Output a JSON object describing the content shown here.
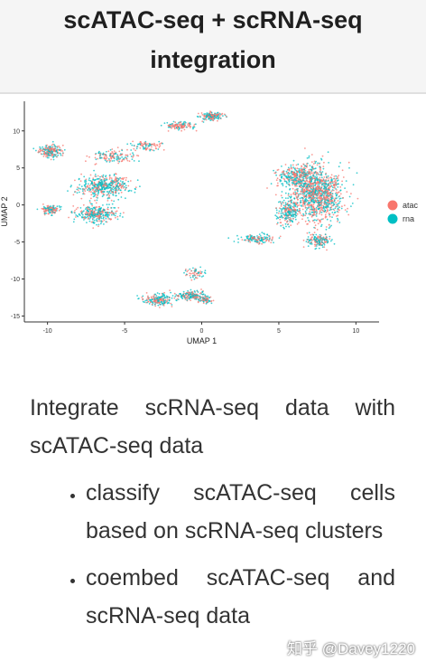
{
  "slide": {
    "title_line1": "scATAC-seq + scRNA-seq",
    "title_line2": "integration",
    "intro": "Integrate scRNA-seq data with scATAC-seq data",
    "bullets": [
      "classify scATAC-seq cells based on scRNA-seq clusters",
      "coembed scATAC-seq and scRNA-seq data"
    ],
    "watermark": "知乎 @Davey1220"
  },
  "chart_data": {
    "type": "scatter",
    "xlabel": "UMAP 1",
    "ylabel": "UMAP 2",
    "xlim": [
      -11.5,
      11.5
    ],
    "ylim": [
      -15.8,
      14
    ],
    "xticks": [
      -10,
      -5,
      0,
      5,
      10
    ],
    "yticks": [
      10,
      5,
      0,
      -5,
      -10,
      -15
    ],
    "legend_position": "right",
    "series": [
      {
        "name": "atac",
        "color": "#F8766D"
      },
      {
        "name": "rna",
        "color": "#00BFC4"
      }
    ],
    "clusters": [
      {
        "x": 7.5,
        "y": 1.5,
        "sx": 1.5,
        "sy": 3.2,
        "n": 1100,
        "mix": 0.55
      },
      {
        "x": 6.2,
        "y": 3.8,
        "sx": 1.2,
        "sy": 1.5,
        "n": 350,
        "mix": 0.45
      },
      {
        "x": 5.6,
        "y": -1.0,
        "sx": 0.7,
        "sy": 1.5,
        "n": 220,
        "mix": 0.5
      },
      {
        "x": 7.6,
        "y": -4.8,
        "sx": 0.8,
        "sy": 0.9,
        "n": 160,
        "mix": 0.45
      },
      {
        "x": 3.5,
        "y": -4.6,
        "sx": 1.0,
        "sy": 0.5,
        "n": 140,
        "mix": 0.4
      },
      {
        "x": -9.8,
        "y": 7.2,
        "sx": 0.7,
        "sy": 0.8,
        "n": 200,
        "mix": 0.5
      },
      {
        "x": -6.3,
        "y": 2.5,
        "sx": 1.4,
        "sy": 1.3,
        "n": 450,
        "mix": 0.35
      },
      {
        "x": -6.8,
        "y": -1.2,
        "sx": 1.2,
        "sy": 1.1,
        "n": 320,
        "mix": 0.45
      },
      {
        "x": -9.8,
        "y": -0.6,
        "sx": 0.5,
        "sy": 0.5,
        "n": 120,
        "mix": 0.5
      },
      {
        "x": -5.8,
        "y": 6.5,
        "sx": 1.2,
        "sy": 0.7,
        "n": 140,
        "mix": 0.6
      },
      {
        "x": -3.6,
        "y": 8.0,
        "sx": 1.0,
        "sy": 0.6,
        "n": 90,
        "mix": 0.6
      },
      {
        "x": -1.5,
        "y": 10.7,
        "sx": 0.9,
        "sy": 0.5,
        "n": 120,
        "mix": 0.55
      },
      {
        "x": 0.7,
        "y": 12.0,
        "sx": 0.6,
        "sy": 0.5,
        "n": 170,
        "mix": 0.55
      },
      {
        "x": -2.8,
        "y": -12.8,
        "sx": 0.9,
        "sy": 0.7,
        "n": 200,
        "mix": 0.4
      },
      {
        "x": -0.7,
        "y": -12.2,
        "sx": 1.0,
        "sy": 0.6,
        "n": 180,
        "mix": 0.5
      },
      {
        "x": 0.2,
        "y": -12.8,
        "sx": 0.4,
        "sy": 0.4,
        "n": 60,
        "mix": 0.55
      },
      {
        "x": -0.3,
        "y": -9.2,
        "sx": 0.7,
        "sy": 0.7,
        "n": 60,
        "mix": 0.5
      }
    ]
  }
}
